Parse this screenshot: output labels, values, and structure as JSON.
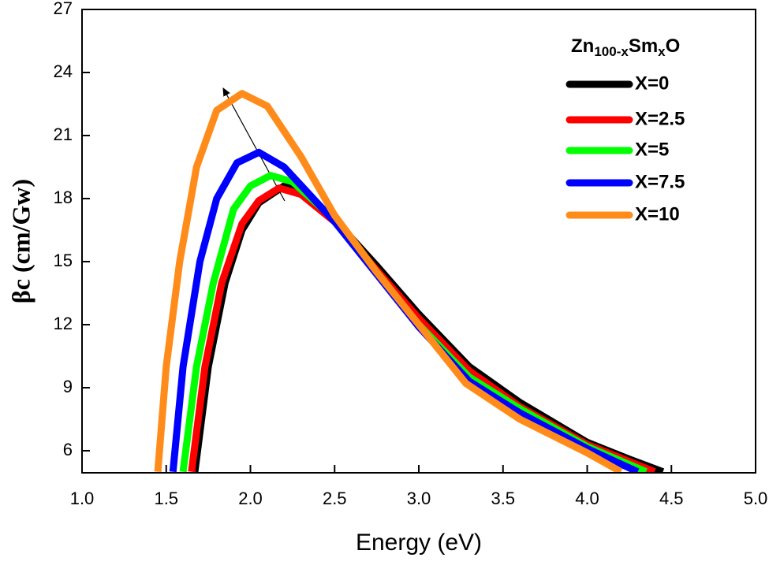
{
  "chart_data": {
    "type": "line",
    "xlabel": "Energy (eV)",
    "ylabel": "βc (cm/Gw)",
    "legend_title_parts": [
      "Zn",
      "100-x",
      "Sm",
      "x",
      "O"
    ],
    "legend": "upper right",
    "xlim": [
      1.0,
      5.0
    ],
    "ylim": [
      4.95,
      27
    ],
    "xticks": [
      {
        "value": 1,
        "label": "1.0"
      },
      1.5,
      {
        "value": 2,
        "label": "2.0"
      },
      2.5,
      {
        "value": 3,
        "label": "3.0"
      },
      3.5,
      {
        "value": 4,
        "label": "4.0"
      },
      4.5,
      {
        "value": 5,
        "label": "5.0"
      }
    ],
    "yticks": [
      6,
      9,
      12,
      15,
      18,
      21,
      24,
      27
    ],
    "series": [
      {
        "name": "X=0",
        "color": "#000000",
        "x": [
          1.67,
          1.75,
          1.85,
          1.95,
          2.05,
          2.2,
          2.3,
          2.5,
          2.75,
          3.0,
          3.3,
          3.6,
          4.0,
          4.25,
          4.45
        ],
        "values": [
          5,
          10,
          14,
          16.5,
          17.8,
          18.6,
          18.3,
          17,
          14.8,
          12.5,
          10,
          8.3,
          6.4,
          5.6,
          5
        ]
      },
      {
        "name": "X=2.5",
        "color": "#ff0000",
        "x": [
          1.65,
          1.73,
          1.83,
          1.95,
          2.05,
          2.17,
          2.3,
          2.5,
          2.75,
          3.0,
          3.3,
          3.6,
          4.0,
          4.4
        ],
        "values": [
          5,
          10,
          14,
          16.8,
          17.9,
          18.5,
          18.2,
          16.9,
          14.6,
          12.3,
          9.8,
          8.1,
          6.3,
          5
        ]
      },
      {
        "name": "X=5",
        "color": "#00ff00",
        "x": [
          1.6,
          1.68,
          1.78,
          1.9,
          2.0,
          2.12,
          2.25,
          2.5,
          2.75,
          3.0,
          3.3,
          3.6,
          4.0,
          4.35
        ],
        "values": [
          5,
          10,
          14,
          17.5,
          18.6,
          19.1,
          18.8,
          17,
          14.5,
          12,
          9.5,
          8,
          6.2,
          5
        ]
      },
      {
        "name": "X=7.5",
        "color": "#0000ff",
        "x": [
          1.54,
          1.6,
          1.7,
          1.8,
          1.92,
          2.05,
          2.2,
          2.5,
          2.75,
          3.0,
          3.3,
          3.6,
          4.0,
          4.3
        ],
        "values": [
          5,
          10,
          15,
          18,
          19.7,
          20.2,
          19.5,
          16.9,
          14.4,
          11.9,
          9.3,
          7.8,
          6.1,
          5
        ]
      },
      {
        "name": "X=10",
        "color": "#ff8c1a",
        "x": [
          1.45,
          1.5,
          1.58,
          1.68,
          1.8,
          1.95,
          2.1,
          2.3,
          2.5,
          2.75,
          3.0,
          3.28,
          3.6,
          4.0,
          4.2
        ],
        "values": [
          5,
          10,
          15,
          19.5,
          22.2,
          23,
          22.4,
          20,
          17.2,
          14.5,
          12,
          9.2,
          7.5,
          5.9,
          5
        ]
      }
    ]
  }
}
